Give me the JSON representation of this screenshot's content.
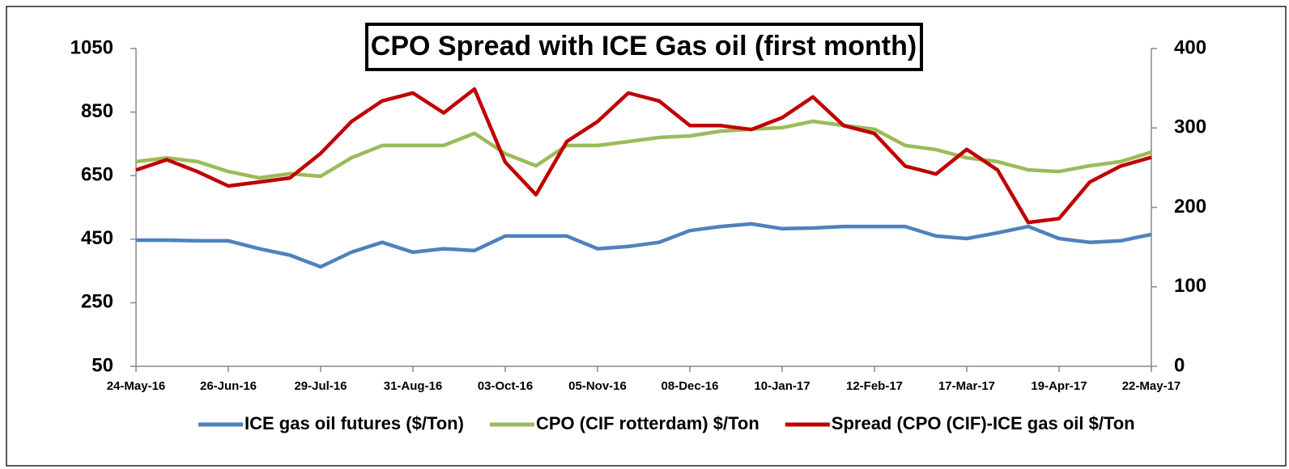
{
  "chart_data": {
    "type": "line",
    "title": "CPO Spread with ICE Gas oil (first month)",
    "x": [
      "2016-05-24",
      "2016-06-04",
      "2016-06-15",
      "2016-06-26",
      "2016-07-07",
      "2016-07-18",
      "2016-07-29",
      "2016-08-09",
      "2016-08-20",
      "2016-08-31",
      "2016-09-11",
      "2016-09-22",
      "2016-10-03",
      "2016-10-14",
      "2016-10-25",
      "2016-11-05",
      "2016-11-16",
      "2016-11-27",
      "2016-12-08",
      "2016-12-19",
      "2016-12-30",
      "2017-01-10",
      "2017-01-21",
      "2017-02-01",
      "2017-02-12",
      "2017-02-23",
      "2017-03-06",
      "2017-03-17",
      "2017-03-28",
      "2017-04-08",
      "2017-04-19",
      "2017-04-30",
      "2017-05-11",
      "2017-05-22"
    ],
    "xlim": [
      "2016-05-24",
      "2017-05-22"
    ],
    "xticks": [
      {
        "value": "2016-05-24",
        "label": "24-May-16"
      },
      {
        "value": "2016-06-26",
        "label": "26-Jun-16"
      },
      {
        "value": "2016-07-29",
        "label": "29-Jul-16"
      },
      {
        "value": "2016-08-31",
        "label": "31-Aug-16"
      },
      {
        "value": "2016-10-03",
        "label": "03-Oct-16"
      },
      {
        "value": "2016-11-05",
        "label": "05-Nov-16"
      },
      {
        "value": "2016-12-08",
        "label": "08-Dec-16"
      },
      {
        "value": "2017-01-10",
        "label": "10-Jan-17"
      },
      {
        "value": "2017-02-12",
        "label": "12-Feb-17"
      },
      {
        "value": "2017-03-17",
        "label": "17-Mar-17"
      },
      {
        "value": "2017-04-19",
        "label": "19-Apr-17"
      },
      {
        "value": "2017-05-22",
        "label": "22-May-17"
      }
    ],
    "ylim": [
      50,
      1050
    ],
    "yticks": [
      50,
      250,
      450,
      650,
      850,
      1050
    ],
    "y2lim": [
      0,
      400
    ],
    "y2ticks": [
      0,
      100,
      200,
      300,
      400
    ],
    "legend": "bottom",
    "series": [
      {
        "name": "ICE gas oil futures ($/Ton)",
        "color": "#4f81bd",
        "values": [
          447,
          447,
          445,
          445,
          420,
          400,
          363,
          409,
          440,
          409,
          420,
          414,
          460,
          460,
          460,
          420,
          427,
          440,
          477,
          490,
          498,
          483,
          485,
          490,
          490,
          490,
          460,
          452,
          470,
          490,
          452,
          440,
          445,
          465
        ]
      },
      {
        "name": "CPO (CIF rotterdam) $/Ton",
        "color": "#9bbb59",
        "values": [
          694,
          706,
          694,
          663,
          643,
          656,
          648,
          706,
          745,
          745,
          745,
          783,
          719,
          681,
          745,
          745,
          757,
          770,
          775,
          790,
          796,
          801,
          821,
          808,
          796,
          745,
          732,
          706,
          694,
          668,
          663,
          681,
          694,
          724
        ]
      },
      {
        "name": "Spread (CPO (CIF)-ICE gas oil $/Ton",
        "color": "#c00000",
        "axis": "y2",
        "values": [
          247,
          260,
          245,
          227,
          232,
          237,
          268,
          308,
          334,
          344,
          319,
          349,
          257,
          216,
          283,
          308,
          344,
          334,
          303,
          303,
          298,
          313,
          339,
          303,
          293,
          252,
          242,
          273,
          247,
          181,
          186,
          232,
          252,
          263
        ]
      }
    ]
  }
}
